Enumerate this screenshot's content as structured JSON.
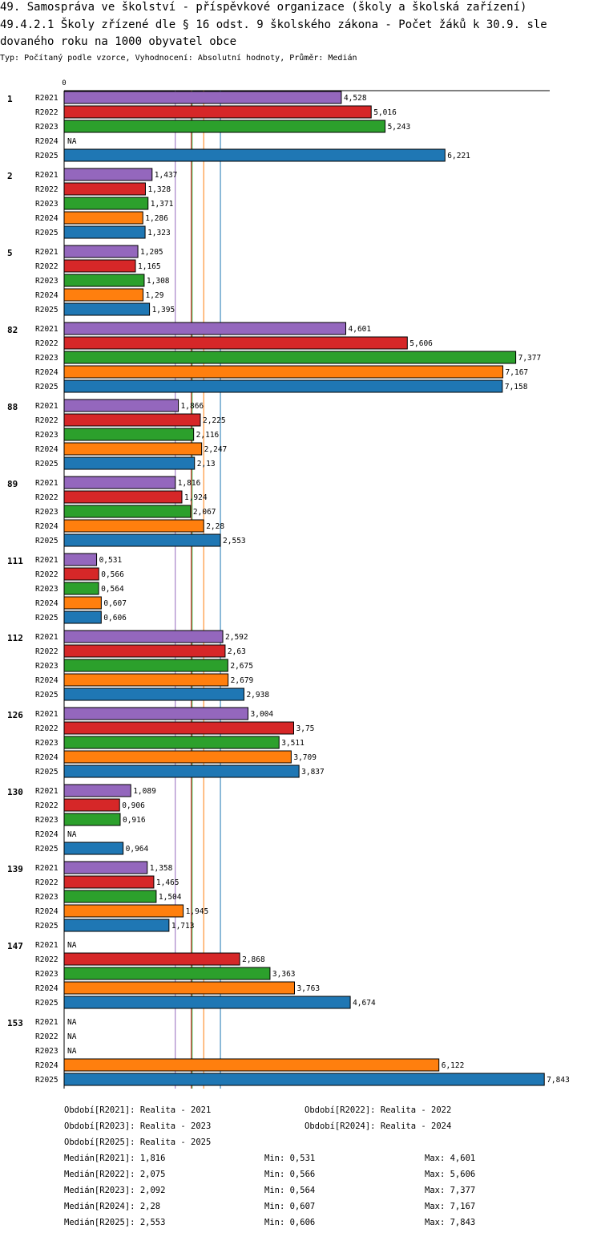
{
  "header": {
    "title_line1": "49. Samospráva ve školství - příspěvkové organizace (školy a školská zařízení)",
    "title_line2": "49.4.2.1 Školy zřízené dle § 16 odst. 9 školského zákona - Počet žáků k 30.9. sle",
    "title_line3": "dovaného roku na 1000 obyvatel obce",
    "subtitle": "Typ: Počítaný podle vzorce, Vyhodnocení: Absolutní hodnoty, Průměr: Medián"
  },
  "chart_data": {
    "type": "bar",
    "orientation": "horizontal",
    "axis_zero_label": "0",
    "xlim": [
      0,
      8.0
    ],
    "na_label": "NA",
    "series_names": [
      "R2021",
      "R2022",
      "R2023",
      "R2024",
      "R2025"
    ],
    "colors": {
      "R2021": "#9467bd",
      "R2022": "#d62728",
      "R2023": "#2ca02c",
      "R2024": "#ff7f0e",
      "R2025": "#1f77b4"
    },
    "groups": [
      {
        "label": "1",
        "values": [
          4.528,
          5.016,
          5.243,
          null,
          6.221
        ],
        "labels": [
          "4,528",
          "5,016",
          "5,243",
          null,
          "6,221"
        ]
      },
      {
        "label": "2",
        "values": [
          1.437,
          1.328,
          1.371,
          1.286,
          1.323
        ],
        "labels": [
          "1,437",
          "1,328",
          "1,371",
          "1,286",
          "1,323"
        ]
      },
      {
        "label": "5",
        "values": [
          1.205,
          1.165,
          1.308,
          1.29,
          1.395
        ],
        "labels": [
          "1,205",
          "1,165",
          "1,308",
          "1,29",
          "1,395"
        ]
      },
      {
        "label": "82",
        "values": [
          4.601,
          5.606,
          7.377,
          7.167,
          7.158
        ],
        "labels": [
          "4,601",
          "5,606",
          "7,377",
          "7,167",
          "7,158"
        ]
      },
      {
        "label": "88",
        "values": [
          1.866,
          2.225,
          2.116,
          2.247,
          2.13
        ],
        "labels": [
          "1,866",
          "2,225",
          "2,116",
          "2,247",
          "2,13"
        ]
      },
      {
        "label": "89",
        "values": [
          1.816,
          1.924,
          2.067,
          2.28,
          2.553
        ],
        "labels": [
          "1,816",
          "1,924",
          "2,067",
          "2,28",
          "2,553"
        ]
      },
      {
        "label": "111",
        "values": [
          0.531,
          0.566,
          0.564,
          0.607,
          0.606
        ],
        "labels": [
          "0,531",
          "0,566",
          "0,564",
          "0,607",
          "0,606"
        ]
      },
      {
        "label": "112",
        "values": [
          2.592,
          2.63,
          2.675,
          2.679,
          2.938
        ],
        "labels": [
          "2,592",
          "2,63",
          "2,675",
          "2,679",
          "2,938"
        ]
      },
      {
        "label": "126",
        "values": [
          3.004,
          3.75,
          3.511,
          3.709,
          3.837
        ],
        "labels": [
          "3,004",
          "3,75",
          "3,511",
          "3,709",
          "3,837"
        ]
      },
      {
        "label": "130",
        "values": [
          1.089,
          0.906,
          0.916,
          null,
          0.964
        ],
        "labels": [
          "1,089",
          "0,906",
          "0,916",
          null,
          "0,964"
        ]
      },
      {
        "label": "139",
        "values": [
          1.358,
          1.465,
          1.504,
          1.945,
          1.713
        ],
        "labels": [
          "1,358",
          "1,465",
          "1,504",
          "1,945",
          "1,713"
        ]
      },
      {
        "label": "147",
        "values": [
          null,
          2.868,
          3.363,
          3.763,
          4.674
        ],
        "labels": [
          null,
          "2,868",
          "3,363",
          "3,763",
          "4,674"
        ]
      },
      {
        "label": "153",
        "values": [
          null,
          null,
          null,
          6.122,
          7.843
        ],
        "labels": [
          null,
          null,
          null,
          "6,122",
          "7,843"
        ]
      }
    ],
    "medians": {
      "R2021": 1.816,
      "R2022": 2.075,
      "R2023": 2.092,
      "R2024": 2.28,
      "R2025": 2.553
    }
  },
  "legend": {
    "periods": [
      "Období[R2021]: Realita - 2021",
      "Období[R2022]: Realita - 2022",
      "Období[R2023]: Realita - 2023",
      "Období[R2024]: Realita - 2024",
      "Období[R2025]: Realita - 2025"
    ],
    "stats": [
      {
        "median": "Medián[R2021]: 1,816",
        "min": "Min: 0,531",
        "max": "Max: 4,601"
      },
      {
        "median": "Medián[R2022]: 2,075",
        "min": "Min: 0,566",
        "max": "Max: 5,606"
      },
      {
        "median": "Medián[R2023]: 2,092",
        "min": "Min: 0,564",
        "max": "Max: 7,377"
      },
      {
        "median": "Medián[R2024]: 2,28",
        "min": "Min: 0,607",
        "max": "Max: 7,167"
      },
      {
        "median": "Medián[R2025]: 2,553",
        "min": "Min: 0,606",
        "max": "Max: 7,843"
      }
    ]
  }
}
